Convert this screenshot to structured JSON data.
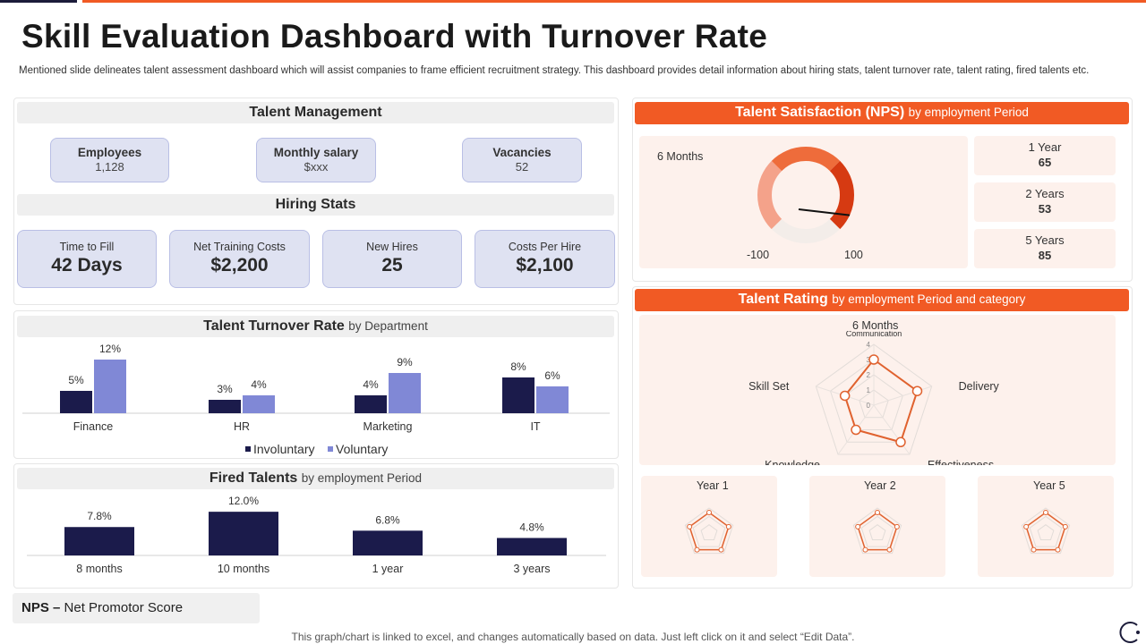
{
  "header": {
    "title": "Skill Evaluation Dashboard with Turnover Rate",
    "subtitle": "Mentioned slide delineates talent assessment dashboard which will assist companies to frame efficient recruitment strategy. This dashboard provides detail information about hiring stats, talent turnover rate, talent rating, fired talents etc."
  },
  "talent_management": {
    "title": "Talent Management",
    "kpis": [
      {
        "label": "Employees",
        "value": "1,128"
      },
      {
        "label": "Monthly salary",
        "value": "$xxx"
      },
      {
        "label": "Vacancies",
        "value": "52"
      }
    ]
  },
  "hiring_stats": {
    "title": "Hiring Stats",
    "items": [
      {
        "label": "Time to Fill",
        "value": "42 Days"
      },
      {
        "label": "Net Training Costs",
        "value": "$2,200"
      },
      {
        "label": "New Hires",
        "value": "25"
      },
      {
        "label": "Costs Per Hire",
        "value": "$2,100"
      }
    ]
  },
  "turnover": {
    "title": "Talent Turnover Rate",
    "title_sub": "by Department",
    "legend": [
      "Involuntary",
      "Voluntary"
    ]
  },
  "fired": {
    "title": "Fired Talents",
    "title_sub": "by employment Period"
  },
  "nps": {
    "title": "Talent Satisfaction (NPS)",
    "title_sub": "by employment Period",
    "gauge_label": "6 Months",
    "gauge_min": "-100",
    "gauge_max": "100",
    "periods": [
      {
        "label": "1 Year",
        "value": "65"
      },
      {
        "label": "2 Years",
        "value": "53"
      },
      {
        "label": "5 Years",
        "value": "85"
      }
    ]
  },
  "rating": {
    "title": "Talent Rating",
    "title_sub": "by employment Period and category",
    "main_label": "6 Months",
    "small_labels": [
      "Year 1",
      "Year 2",
      "Year 5"
    ]
  },
  "legend_note": {
    "abbr": "NPS –",
    "text": "Net Promotor Score"
  },
  "footnote": "This graph/chart is linked to excel,  and changes automatically based on data. Just left click on it and select “Edit Data”.",
  "colors": {
    "accent": "#f15a24",
    "navy": "#1b1b4b",
    "periwinkle": "#8088d6"
  },
  "chart_data": [
    {
      "type": "bar",
      "title": "Talent Turnover Rate by Department",
      "categories": [
        "Finance",
        "HR",
        "Marketing",
        "IT"
      ],
      "series": [
        {
          "name": "Involuntary",
          "values": [
            5,
            3,
            4,
            8
          ],
          "labels": [
            "5%",
            "3%",
            "4%",
            "8%"
          ]
        },
        {
          "name": "Voluntary",
          "values": [
            12,
            4,
            9,
            6
          ],
          "labels": [
            "12%",
            "4%",
            "9%",
            "6%"
          ]
        }
      ],
      "ylim": [
        0,
        14
      ]
    },
    {
      "type": "bar",
      "title": "Fired Talents by employment Period",
      "categories": [
        "8 months",
        "10 months",
        "1 year",
        "3 years"
      ],
      "values": [
        7.8,
        12.0,
        6.8,
        4.8
      ],
      "labels": [
        "7.8%",
        "12.0%",
        "6.8%",
        "4.8%"
      ],
      "ylim": [
        0,
        14
      ]
    },
    {
      "type": "gauge",
      "title": "6 Months NPS",
      "range": [
        -100,
        100
      ],
      "value": 85
    },
    {
      "type": "radar",
      "title": "6 Months",
      "axes": [
        "Communication",
        "Delivery",
        "Effectiveness",
        "Knowledge",
        "Skill Set"
      ],
      "values": [
        3,
        3,
        3,
        2,
        2
      ],
      "rmax": 4,
      "ticks": [
        "0",
        "1",
        "2",
        "3",
        "4"
      ]
    }
  ]
}
